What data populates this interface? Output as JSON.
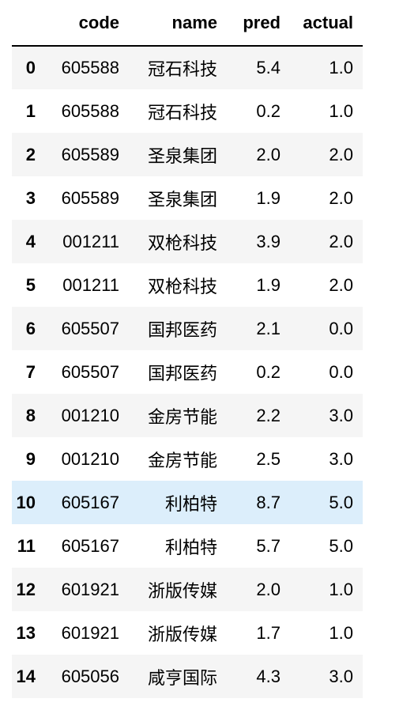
{
  "table": {
    "columns": {
      "index": "",
      "code": "code",
      "name": "name",
      "pred": "pred",
      "actual": "actual"
    },
    "highlighted_row": 10,
    "colors": {
      "odd_row": "#f5f5f5",
      "even_row": "#ffffff",
      "hover_row": "#dceefb",
      "header_rule": "#000000"
    },
    "rows": [
      {
        "index": "0",
        "code": "605588",
        "name": "冠石科技",
        "pred": "5.4",
        "actual": "1.0"
      },
      {
        "index": "1",
        "code": "605588",
        "name": "冠石科技",
        "pred": "0.2",
        "actual": "1.0"
      },
      {
        "index": "2",
        "code": "605589",
        "name": "圣泉集团",
        "pred": "2.0",
        "actual": "2.0"
      },
      {
        "index": "3",
        "code": "605589",
        "name": "圣泉集团",
        "pred": "1.9",
        "actual": "2.0"
      },
      {
        "index": "4",
        "code": "001211",
        "name": "双枪科技",
        "pred": "3.9",
        "actual": "2.0"
      },
      {
        "index": "5",
        "code": "001211",
        "name": "双枪科技",
        "pred": "1.9",
        "actual": "2.0"
      },
      {
        "index": "6",
        "code": "605507",
        "name": "国邦医药",
        "pred": "2.1",
        "actual": "0.0"
      },
      {
        "index": "7",
        "code": "605507",
        "name": "国邦医药",
        "pred": "0.2",
        "actual": "0.0"
      },
      {
        "index": "8",
        "code": "001210",
        "name": "金房节能",
        "pred": "2.2",
        "actual": "3.0"
      },
      {
        "index": "9",
        "code": "001210",
        "name": "金房节能",
        "pred": "2.5",
        "actual": "3.0"
      },
      {
        "index": "10",
        "code": "605167",
        "name": "利柏特",
        "pred": "8.7",
        "actual": "5.0"
      },
      {
        "index": "11",
        "code": "605167",
        "name": "利柏特",
        "pred": "5.7",
        "actual": "5.0"
      },
      {
        "index": "12",
        "code": "601921",
        "name": "浙版传媒",
        "pred": "2.0",
        "actual": "1.0"
      },
      {
        "index": "13",
        "code": "601921",
        "name": "浙版传媒",
        "pred": "1.7",
        "actual": "1.0"
      },
      {
        "index": "14",
        "code": "605056",
        "name": "咸亨国际",
        "pred": "4.3",
        "actual": "3.0"
      }
    ]
  }
}
